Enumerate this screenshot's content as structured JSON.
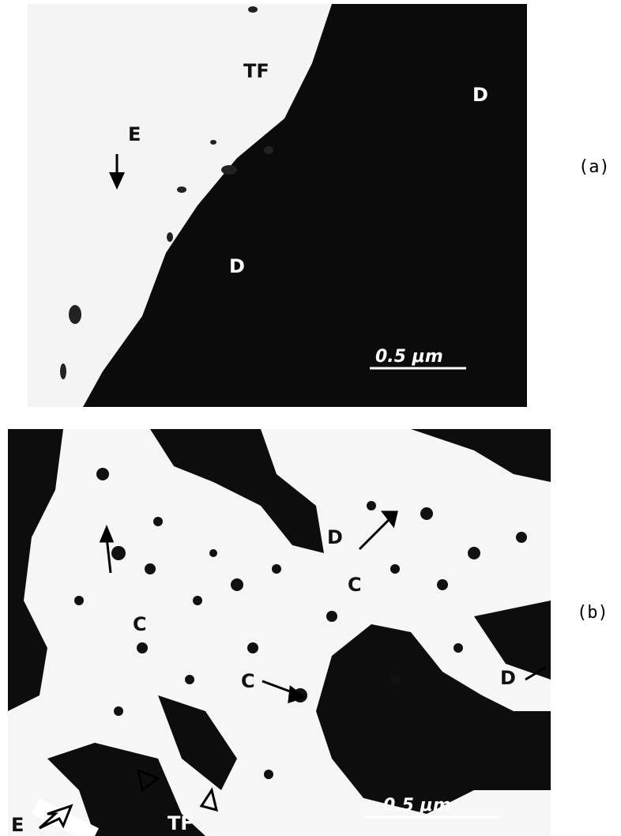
{
  "panels": [
    {
      "caption": "(a)",
      "labels": [
        "TF",
        "E",
        "D",
        "D"
      ],
      "scale_bar": "0.5 μm"
    },
    {
      "caption": "(b)",
      "labels": [
        "D",
        "C",
        "C",
        "C",
        "D",
        "E",
        "TF"
      ],
      "scale_bar": "0.5 μm"
    }
  ]
}
